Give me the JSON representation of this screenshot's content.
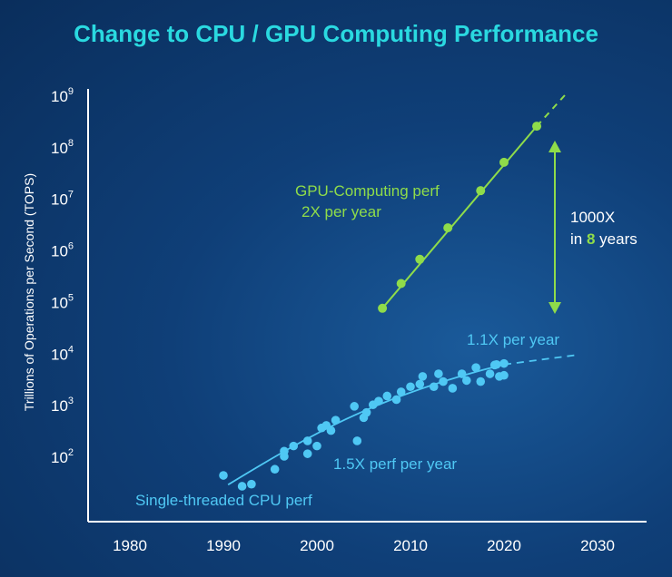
{
  "chart_data": {
    "type": "scatter",
    "title": "Change to CPU / GPU Computing Performance",
    "xlabel": "",
    "ylabel": "Trillions of Operations per Second (TOPS)",
    "x_ticks": [
      "1980",
      "1990",
      "2000",
      "2010",
      "2020",
      "2030"
    ],
    "x_tick_values": [
      1980,
      1990,
      2000,
      2010,
      2020,
      2030
    ],
    "y_ticks": [
      {
        "base": "10",
        "exp": "2",
        "value": 2
      },
      {
        "base": "10",
        "exp": "3",
        "value": 3
      },
      {
        "base": "10",
        "exp": "4",
        "value": 4
      },
      {
        "base": "10",
        "exp": "5",
        "value": 5
      },
      {
        "base": "10",
        "exp": "6",
        "value": 6
      },
      {
        "base": "10",
        "exp": "7",
        "value": 7
      },
      {
        "base": "10",
        "exp": "8",
        "value": 8
      },
      {
        "base": "10",
        "exp": "9",
        "value": 9
      }
    ],
    "series": [
      {
        "name": "Single-threaded CPU perf",
        "color": "#4fc8f4",
        "points": [
          [
            1990,
            1.63
          ],
          [
            1992,
            1.42
          ],
          [
            1993,
            1.46
          ],
          [
            1995.5,
            1.75
          ],
          [
            1996.5,
            2.1
          ],
          [
            1997.5,
            2.2
          ],
          [
            1996.5,
            2.0
          ],
          [
            1999,
            2.3
          ],
          [
            1999,
            2.05
          ],
          [
            2000,
            2.2
          ],
          [
            2000.5,
            2.55
          ],
          [
            2001.5,
            2.5
          ],
          [
            2002,
            2.7
          ],
          [
            2001,
            2.6
          ],
          [
            2004,
            2.97
          ],
          [
            2004.3,
            2.3
          ],
          [
            2005,
            2.75
          ],
          [
            2005.3,
            2.85
          ],
          [
            2006,
            3.0
          ],
          [
            2006.6,
            3.07
          ],
          [
            2007.5,
            3.17
          ],
          [
            2008.5,
            3.1
          ],
          [
            2009,
            3.25
          ],
          [
            2010,
            3.35
          ],
          [
            2011,
            3.4
          ],
          [
            2011.3,
            3.55
          ],
          [
            2012.5,
            3.35
          ],
          [
            2013,
            3.6
          ],
          [
            2013.5,
            3.45
          ],
          [
            2014.5,
            3.32
          ],
          [
            2015.5,
            3.6
          ],
          [
            2016,
            3.47
          ],
          [
            2017,
            3.72
          ],
          [
            2017.5,
            3.45
          ],
          [
            2018.5,
            3.6
          ],
          [
            2019,
            3.77
          ],
          [
            2019.5,
            3.55
          ],
          [
            2020,
            3.8
          ],
          [
            2020,
            3.57
          ],
          [
            2019.2,
            3.78
          ]
        ],
        "trend_label": "1.5X perf per year",
        "trend_label_2": "1.1X per year"
      },
      {
        "name": "GPU-Computing perf",
        "color": "#8fdc4a",
        "points": [
          [
            2007,
            4.87
          ],
          [
            2009,
            5.35
          ],
          [
            2011,
            5.82
          ],
          [
            2014,
            6.43
          ],
          [
            2017.5,
            7.15
          ],
          [
            2020,
            7.7
          ],
          [
            2023.5,
            8.4
          ]
        ],
        "trend_label_line1": "GPU-Computing perf",
        "trend_label_line2": "2X per year"
      }
    ],
    "annotation": {
      "line1": "1000X",
      "line2_prefix": "in ",
      "line2_highlight": "8",
      "line2_suffix": " years"
    }
  }
}
